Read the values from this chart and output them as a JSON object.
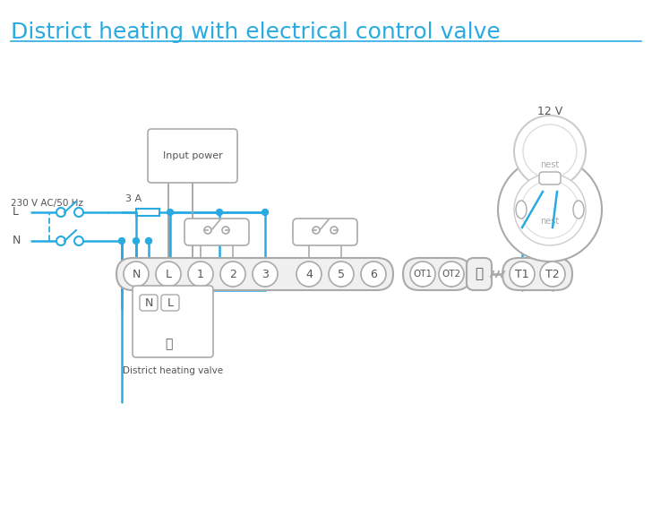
{
  "title": "District heating with electrical control valve",
  "title_color": "#29abe2",
  "title_fontsize": 18,
  "bg_color": "#ffffff",
  "line_color": "#29abe2",
  "device_color": "#888888",
  "terminal_strip_color": "#aaaaaa",
  "terminal_labels": [
    "N",
    "L",
    "1",
    "2",
    "3",
    "4",
    "5",
    "6"
  ],
  "terminal_labels2": [
    "OT1",
    "OT2"
  ],
  "terminal_labels3": [
    "T1",
    "T2"
  ],
  "label_230v": "230 V AC/50 Hz",
  "label_L": "L",
  "label_N": "N",
  "label_3A": "3 A",
  "label_input_power": "Input power",
  "label_district": "District heating valve",
  "label_12v": "12 V",
  "label_nest": "nest"
}
